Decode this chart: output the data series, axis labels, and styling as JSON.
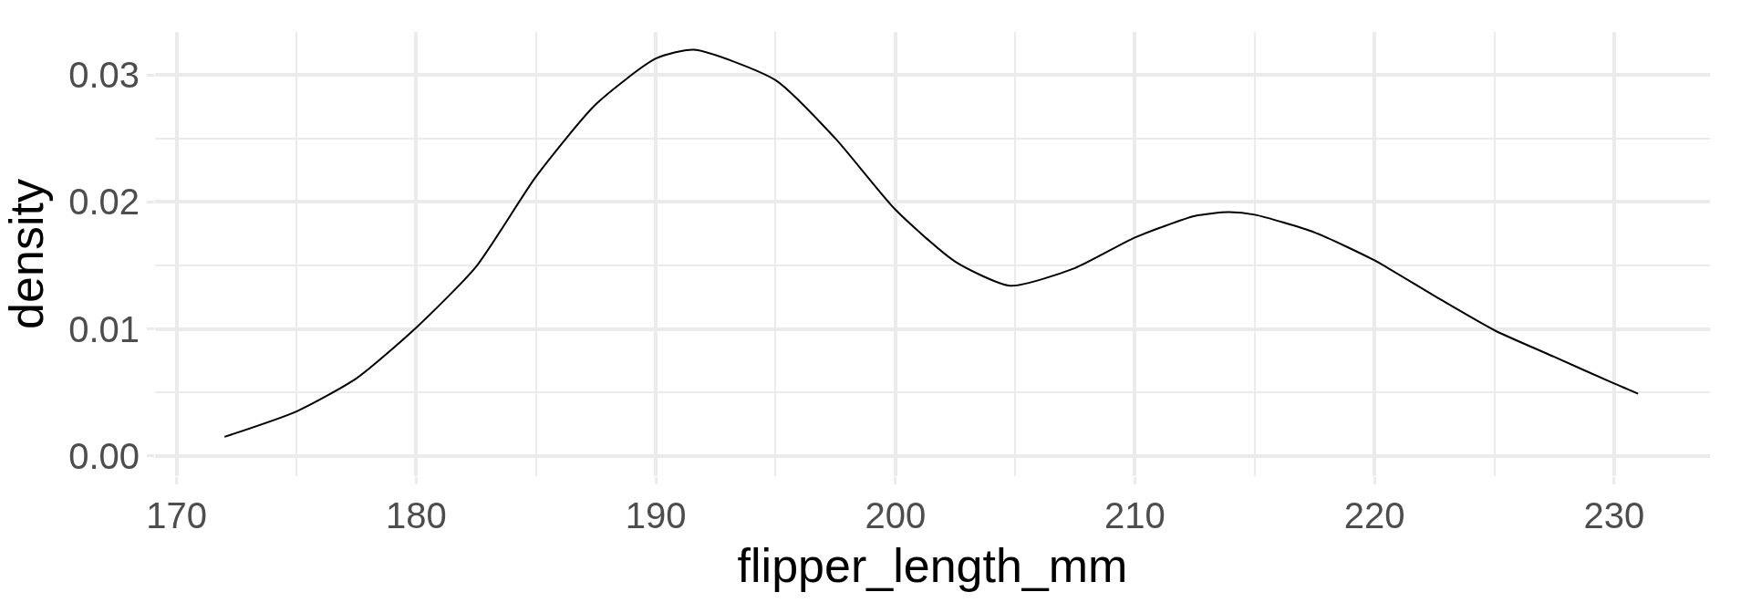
{
  "chart_data": {
    "type": "line",
    "xlabel": "flipper_length_mm",
    "ylabel": "density",
    "x": [
      172.0,
      175,
      177.5,
      180,
      182.5,
      185,
      187.5,
      190,
      191.6,
      195,
      197.5,
      200,
      202.5,
      204.8,
      207.5,
      210,
      212.5,
      213.9,
      215,
      217.5,
      220,
      222.5,
      225,
      227.5,
      230,
      231.0
    ],
    "series": [
      {
        "color": "#000000",
        "values": [
          0.0015,
          0.0035,
          0.0061,
          0.0101,
          0.0149,
          0.022,
          0.0277,
          0.0313,
          0.032,
          0.0296,
          0.025,
          0.0194,
          0.0153,
          0.0134,
          0.0148,
          0.0172,
          0.0189,
          0.0192,
          0.019,
          0.0176,
          0.0154,
          0.0126,
          0.0099,
          0.0078,
          0.0057,
          0.0049
        ]
      }
    ],
    "xlim": [
      169.1,
      234.0
    ],
    "ylim": [
      -0.0016,
      0.0334
    ],
    "xticks": [
      170,
      180,
      190,
      200,
      210,
      220,
      230
    ],
    "yticks": [
      {
        "value": 0,
        "label": "0.00"
      },
      {
        "value": 0.01,
        "label": "0.01"
      },
      {
        "value": 0.02,
        "label": "0.02"
      },
      {
        "value": 0.03,
        "label": "0.03"
      }
    ],
    "grid": true,
    "marker": "none",
    "line_style": "solid"
  }
}
